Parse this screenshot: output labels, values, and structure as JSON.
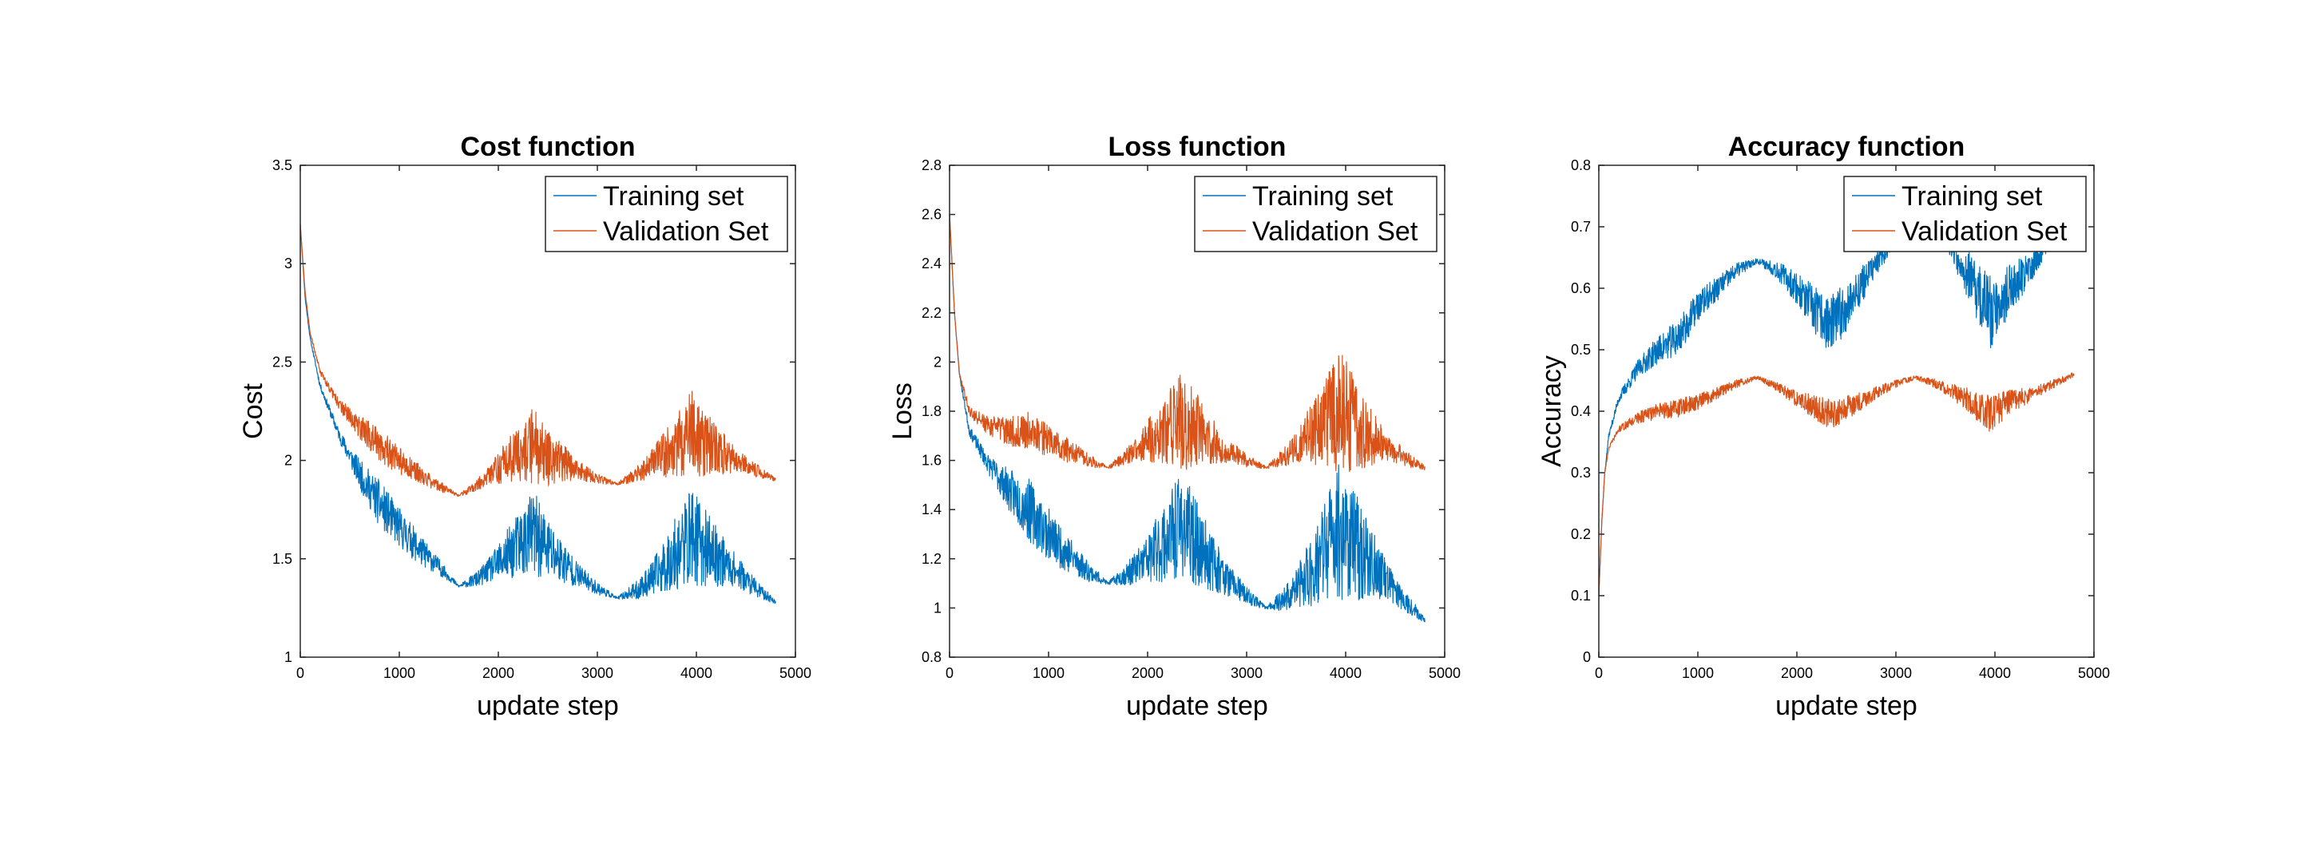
{
  "chart_data": [
    {
      "type": "line",
      "title": "Cost function",
      "xlabel": "update step",
      "ylabel": "Cost",
      "xlim": [
        0,
        5000
      ],
      "ylim": [
        1,
        3.5
      ],
      "xticks": [
        0,
        1000,
        2000,
        3000,
        4000,
        5000
      ],
      "xtick_labels": [
        "0",
        "1000",
        "2000",
        "3000",
        "4000",
        "5000"
      ],
      "yticks": [
        1,
        1.5,
        2,
        2.5,
        3,
        3.5
      ],
      "ytick_labels": [
        "1",
        "1.5",
        "2",
        "2.5",
        "3",
        "3.5"
      ],
      "legend_position": "top-right",
      "noise_seed": 11,
      "series": [
        {
          "name": "Training set",
          "color": "#0072BD",
          "anchors": [
            [
              0,
              3.2
            ],
            [
              50,
              2.82
            ],
            [
              100,
              2.62
            ],
            [
              200,
              2.38
            ],
            [
              400,
              2.12
            ],
            [
              600,
              1.93
            ],
            [
              800,
              1.78
            ],
            [
              1000,
              1.66
            ],
            [
              1200,
              1.55
            ],
            [
              1400,
              1.46
            ],
            [
              1600,
              1.36
            ],
            [
              1800,
              1.4
            ],
            [
              2000,
              1.48
            ],
            [
              2200,
              1.57
            ],
            [
              2350,
              1.63
            ],
            [
              2500,
              1.55
            ],
            [
              2800,
              1.42
            ],
            [
              3000,
              1.35
            ],
            [
              3200,
              1.3
            ],
            [
              3400,
              1.34
            ],
            [
              3600,
              1.42
            ],
            [
              3800,
              1.53
            ],
            [
              3950,
              1.62
            ],
            [
              4100,
              1.55
            ],
            [
              4400,
              1.44
            ],
            [
              4600,
              1.35
            ],
            [
              4800,
              1.28
            ]
          ],
          "noise": [
            [
              0,
              0
            ],
            [
              400,
              0.03
            ],
            [
              800,
              0.12
            ],
            [
              1200,
              0.08
            ],
            [
              1600,
              0.005
            ],
            [
              1900,
              0.06
            ],
            [
              2350,
              0.22
            ],
            [
              2800,
              0.06
            ],
            [
              3200,
              0.005
            ],
            [
              3500,
              0.07
            ],
            [
              3950,
              0.25
            ],
            [
              4400,
              0.08
            ],
            [
              4800,
              0.01
            ]
          ]
        },
        {
          "name": "Validation Set",
          "color": "#D95319",
          "anchors": [
            [
              0,
              3.2
            ],
            [
              50,
              2.85
            ],
            [
              100,
              2.65
            ],
            [
              200,
              2.45
            ],
            [
              400,
              2.28
            ],
            [
              600,
              2.17
            ],
            [
              800,
              2.08
            ],
            [
              1000,
              2.0
            ],
            [
              1200,
              1.93
            ],
            [
              1400,
              1.87
            ],
            [
              1600,
              1.82
            ],
            [
              1800,
              1.88
            ],
            [
              2000,
              1.96
            ],
            [
              2200,
              2.03
            ],
            [
              2350,
              2.08
            ],
            [
              2500,
              2.02
            ],
            [
              2800,
              1.95
            ],
            [
              3000,
              1.91
            ],
            [
              3200,
              1.88
            ],
            [
              3400,
              1.93
            ],
            [
              3600,
              2.0
            ],
            [
              3800,
              2.08
            ],
            [
              3950,
              2.14
            ],
            [
              4100,
              2.08
            ],
            [
              4400,
              2.0
            ],
            [
              4600,
              1.95
            ],
            [
              4800,
              1.9
            ]
          ],
          "noise": [
            [
              0,
              0
            ],
            [
              400,
              0.03
            ],
            [
              800,
              0.09
            ],
            [
              1200,
              0.05
            ],
            [
              1600,
              0.005
            ],
            [
              1900,
              0.05
            ],
            [
              2350,
              0.2
            ],
            [
              2800,
              0.05
            ],
            [
              3200,
              0.005
            ],
            [
              3500,
              0.06
            ],
            [
              3950,
              0.22
            ],
            [
              4400,
              0.06
            ],
            [
              4800,
              0.01
            ]
          ]
        }
      ]
    },
    {
      "type": "line",
      "title": "Loss function",
      "xlabel": "update step",
      "ylabel": "Loss",
      "xlim": [
        0,
        5000
      ],
      "ylim": [
        0.8,
        2.8
      ],
      "xticks": [
        0,
        1000,
        2000,
        3000,
        4000,
        5000
      ],
      "xtick_labels": [
        "0",
        "1000",
        "2000",
        "3000",
        "4000",
        "5000"
      ],
      "yticks": [
        0.8,
        1,
        1.2,
        1.4,
        1.6,
        1.8,
        2,
        2.2,
        2.4,
        2.6,
        2.8
      ],
      "ytick_labels": [
        "0.8",
        "1",
        "1.2",
        "1.4",
        "1.6",
        "1.8",
        "2",
        "2.2",
        "2.4",
        "2.6",
        "2.8"
      ],
      "legend_position": "top-right",
      "noise_seed": 23,
      "series": [
        {
          "name": "Training set",
          "color": "#0072BD",
          "anchors": [
            [
              0,
              2.6
            ],
            [
              50,
              2.2
            ],
            [
              100,
              1.95
            ],
            [
              200,
              1.72
            ],
            [
              400,
              1.58
            ],
            [
              600,
              1.48
            ],
            [
              800,
              1.4
            ],
            [
              1000,
              1.3
            ],
            [
              1200,
              1.22
            ],
            [
              1400,
              1.15
            ],
            [
              1600,
              1.1
            ],
            [
              1800,
              1.14
            ],
            [
              2000,
              1.2
            ],
            [
              2200,
              1.28
            ],
            [
              2350,
              1.34
            ],
            [
              2500,
              1.26
            ],
            [
              2800,
              1.12
            ],
            [
              3000,
              1.05
            ],
            [
              3200,
              1.0
            ],
            [
              3400,
              1.04
            ],
            [
              3600,
              1.12
            ],
            [
              3800,
              1.24
            ],
            [
              3950,
              1.33
            ],
            [
              4100,
              1.25
            ],
            [
              4400,
              1.12
            ],
            [
              4600,
              1.03
            ],
            [
              4800,
              0.95
            ]
          ],
          "noise": [
            [
              0,
              0
            ],
            [
              400,
              0.04
            ],
            [
              800,
              0.13
            ],
            [
              1200,
              0.08
            ],
            [
              1600,
              0.005
            ],
            [
              1900,
              0.07
            ],
            [
              2350,
              0.22
            ],
            [
              2800,
              0.07
            ],
            [
              3200,
              0.005
            ],
            [
              3500,
              0.08
            ],
            [
              3950,
              0.3
            ],
            [
              4400,
              0.08
            ],
            [
              4800,
              0.01
            ]
          ]
        },
        {
          "name": "Validation Set",
          "color": "#D95319",
          "anchors": [
            [
              0,
              2.6
            ],
            [
              50,
              2.2
            ],
            [
              100,
              1.95
            ],
            [
              200,
              1.8
            ],
            [
              400,
              1.74
            ],
            [
              600,
              1.72
            ],
            [
              800,
              1.72
            ],
            [
              1000,
              1.68
            ],
            [
              1200,
              1.64
            ],
            [
              1400,
              1.6
            ],
            [
              1600,
              1.57
            ],
            [
              1800,
              1.62
            ],
            [
              2000,
              1.68
            ],
            [
              2200,
              1.73
            ],
            [
              2350,
              1.76
            ],
            [
              2500,
              1.72
            ],
            [
              2800,
              1.64
            ],
            [
              3000,
              1.6
            ],
            [
              3200,
              1.57
            ],
            [
              3400,
              1.62
            ],
            [
              3600,
              1.69
            ],
            [
              3800,
              1.75
            ],
            [
              3950,
              1.8
            ],
            [
              4100,
              1.74
            ],
            [
              4400,
              1.66
            ],
            [
              4600,
              1.61
            ],
            [
              4800,
              1.57
            ]
          ],
          "noise": [
            [
              0,
              0
            ],
            [
              400,
              0.04
            ],
            [
              800,
              0.08
            ],
            [
              1200,
              0.05
            ],
            [
              1600,
              0.005
            ],
            [
              1900,
              0.05
            ],
            [
              2350,
              0.2
            ],
            [
              2800,
              0.05
            ],
            [
              3200,
              0.005
            ],
            [
              3500,
              0.06
            ],
            [
              3950,
              0.25
            ],
            [
              4400,
              0.06
            ],
            [
              4800,
              0.01
            ]
          ]
        }
      ]
    },
    {
      "type": "line",
      "title": "Accuracy function",
      "xlabel": "update step",
      "ylabel": "Accuracy",
      "xlim": [
        0,
        5000
      ],
      "ylim": [
        0,
        0.8
      ],
      "xticks": [
        0,
        1000,
        2000,
        3000,
        4000,
        5000
      ],
      "xtick_labels": [
        "0",
        "1000",
        "2000",
        "3000",
        "4000",
        "5000"
      ],
      "yticks": [
        0,
        0.1,
        0.2,
        0.3,
        0.4,
        0.5,
        0.6,
        0.7,
        0.8
      ],
      "ytick_labels": [
        "0",
        "0.1",
        "0.2",
        "0.3",
        "0.4",
        "0.5",
        "0.6",
        "0.7",
        "0.8"
      ],
      "legend_position": "top-right",
      "noise_seed": 37,
      "series": [
        {
          "name": "Training set",
          "color": "#0072BD",
          "anchors": [
            [
              0,
              0.1
            ],
            [
              30,
              0.22
            ],
            [
              60,
              0.3
            ],
            [
              100,
              0.36
            ],
            [
              200,
              0.42
            ],
            [
              400,
              0.47
            ],
            [
              600,
              0.5
            ],
            [
              800,
              0.52
            ],
            [
              1000,
              0.57
            ],
            [
              1200,
              0.6
            ],
            [
              1400,
              0.63
            ],
            [
              1600,
              0.645
            ],
            [
              1800,
              0.63
            ],
            [
              2000,
              0.6
            ],
            [
              2200,
              0.56
            ],
            [
              2350,
              0.54
            ],
            [
              2500,
              0.57
            ],
            [
              2800,
              0.64
            ],
            [
              3000,
              0.68
            ],
            [
              3200,
              0.72
            ],
            [
              3400,
              0.72
            ],
            [
              3600,
              0.66
            ],
            [
              3800,
              0.6
            ],
            [
              3950,
              0.56
            ],
            [
              4100,
              0.59
            ],
            [
              4400,
              0.64
            ],
            [
              4600,
              0.69
            ],
            [
              4800,
              0.74
            ]
          ],
          "noise": [
            [
              0,
              0
            ],
            [
              400,
              0.015
            ],
            [
              800,
              0.03
            ],
            [
              1200,
              0.02
            ],
            [
              1600,
              0.004
            ],
            [
              1900,
              0.02
            ],
            [
              2350,
              0.05
            ],
            [
              2800,
              0.02
            ],
            [
              3200,
              0.004
            ],
            [
              3500,
              0.02
            ],
            [
              3950,
              0.06
            ],
            [
              4400,
              0.02
            ],
            [
              4800,
              0.005
            ]
          ]
        },
        {
          "name": "Validation Set",
          "color": "#D95319",
          "anchors": [
            [
              0,
              0.1
            ],
            [
              30,
              0.22
            ],
            [
              60,
              0.3
            ],
            [
              100,
              0.34
            ],
            [
              200,
              0.37
            ],
            [
              400,
              0.39
            ],
            [
              600,
              0.4
            ],
            [
              800,
              0.405
            ],
            [
              1000,
              0.415
            ],
            [
              1200,
              0.43
            ],
            [
              1400,
              0.445
            ],
            [
              1600,
              0.455
            ],
            [
              1800,
              0.44
            ],
            [
              2000,
              0.42
            ],
            [
              2200,
              0.405
            ],
            [
              2350,
              0.395
            ],
            [
              2500,
              0.405
            ],
            [
              2800,
              0.43
            ],
            [
              3000,
              0.445
            ],
            [
              3200,
              0.455
            ],
            [
              3400,
              0.445
            ],
            [
              3600,
              0.43
            ],
            [
              3800,
              0.41
            ],
            [
              3950,
              0.395
            ],
            [
              4100,
              0.41
            ],
            [
              4400,
              0.43
            ],
            [
              4600,
              0.445
            ],
            [
              4800,
              0.46
            ]
          ],
          "noise": [
            [
              0,
              0
            ],
            [
              400,
              0.01
            ],
            [
              800,
              0.015
            ],
            [
              1200,
              0.01
            ],
            [
              1600,
              0.003
            ],
            [
              1900,
              0.01
            ],
            [
              2350,
              0.025
            ],
            [
              2800,
              0.01
            ],
            [
              3200,
              0.003
            ],
            [
              3500,
              0.01
            ],
            [
              3950,
              0.03
            ],
            [
              4400,
              0.01
            ],
            [
              4800,
              0.004
            ]
          ]
        }
      ]
    }
  ]
}
